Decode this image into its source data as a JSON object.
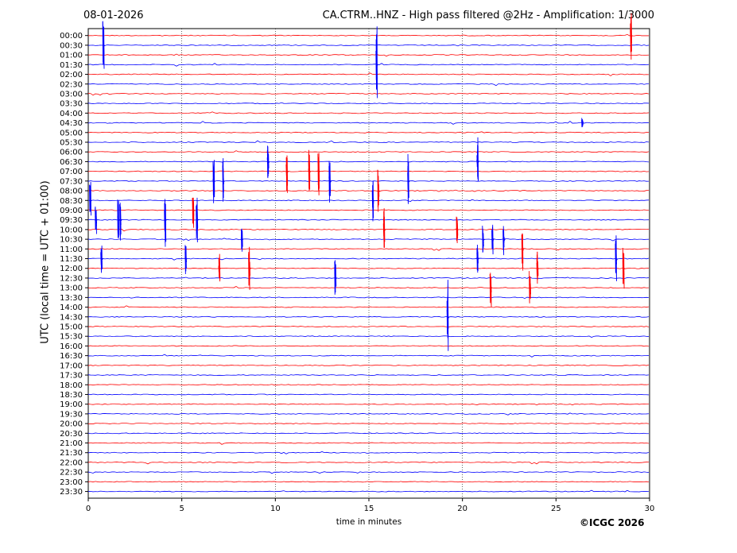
{
  "header": {
    "date": "08-01-2026",
    "title": "CA.CTRM..HNZ - High pass filtered @2Hz - Amplification: 1/3000"
  },
  "footer": {
    "credit": "©ICGC 2026"
  },
  "colors": {
    "trace_a": "#ff0000",
    "trace_b": "#0000ff",
    "grid": "#000000",
    "axis": "#000000"
  },
  "chart_data": {
    "type": "line",
    "title": "CA.CTRM..HNZ - High pass filtered @2Hz - Amplification: 1/3000",
    "xlabel": "time in minutes",
    "ylabel": "UTC (local time = UTC + 01:00)",
    "xlim": [
      0,
      30
    ],
    "x_ticks": [
      0,
      5,
      10,
      15,
      20,
      25,
      30
    ],
    "grid": "vertical dotted at each x tick",
    "legend": "none",
    "series_colors": [
      "#ff0000",
      "#0000ff"
    ],
    "rows": [
      "00:00",
      "00:30",
      "01:00",
      "01:30",
      "02:00",
      "02:30",
      "03:00",
      "03:30",
      "04:00",
      "04:30",
      "05:00",
      "05:30",
      "06:00",
      "06:30",
      "07:00",
      "07:30",
      "08:00",
      "08:30",
      "09:00",
      "09:30",
      "10:00",
      "10:30",
      "11:00",
      "11:30",
      "12:00",
      "12:30",
      "13:00",
      "13:30",
      "14:00",
      "14:30",
      "15:00",
      "15:30",
      "16:00",
      "16:30",
      "17:00",
      "17:30",
      "18:00",
      "18:30",
      "19:00",
      "19:30",
      "20:00",
      "20:30",
      "21:00",
      "21:30",
      "22:00",
      "22:30",
      "23:00",
      "23:30"
    ],
    "events": [
      {
        "row": 1,
        "minute": 0.8,
        "amplitude": 3.2
      },
      {
        "row": 0,
        "minute": 29.0,
        "amplitude": 2.5
      },
      {
        "row": 3,
        "minute": 15.4,
        "amplitude": 4.0
      },
      {
        "row": 9,
        "minute": 26.4,
        "amplitude": 0.5
      },
      {
        "row": 13,
        "minute": 20.8,
        "amplitude": 3.0
      },
      {
        "row": 14,
        "minute": 10.6,
        "amplitude": 2.5
      },
      {
        "row": 15,
        "minute": 17.1,
        "amplitude": 3.3
      },
      {
        "row": 13,
        "minute": 9.6,
        "amplitude": 2.0
      },
      {
        "row": 14,
        "minute": 11.8,
        "amplitude": 2.5
      },
      {
        "row": 14,
        "minute": 12.3,
        "amplitude": 2.5
      },
      {
        "row": 15,
        "minute": 12.9,
        "amplitude": 2.3
      },
      {
        "row": 15,
        "minute": 6.7,
        "amplitude": 2.5
      },
      {
        "row": 15,
        "minute": 7.2,
        "amplitude": 2.5
      },
      {
        "row": 17,
        "minute": 15.2,
        "amplitude": 2.7
      },
      {
        "row": 16,
        "minute": 15.5,
        "amplitude": 2.5
      },
      {
        "row": 17,
        "minute": 0.1,
        "amplitude": 2.0
      },
      {
        "row": 19,
        "minute": 1.7,
        "amplitude": 2.5
      },
      {
        "row": 19,
        "minute": 1.6,
        "amplitude": 2.3
      },
      {
        "row": 19,
        "minute": 4.1,
        "amplitude": 3.0
      },
      {
        "row": 19,
        "minute": 5.8,
        "amplitude": 2.5
      },
      {
        "row": 18,
        "minute": 5.6,
        "amplitude": 2.0
      },
      {
        "row": 19,
        "minute": 0.4,
        "amplitude": 1.6
      },
      {
        "row": 20,
        "minute": 15.8,
        "amplitude": 2.5
      },
      {
        "row": 20,
        "minute": 19.7,
        "amplitude": 1.8
      },
      {
        "row": 21,
        "minute": 21.6,
        "amplitude": 1.8
      },
      {
        "row": 21,
        "minute": 22.2,
        "amplitude": 1.7
      },
      {
        "row": 21,
        "minute": 21.1,
        "amplitude": 1.5
      },
      {
        "row": 21,
        "minute": 8.2,
        "amplitude": 1.5
      },
      {
        "row": 22,
        "minute": 23.2,
        "amplitude": 2.3
      },
      {
        "row": 23,
        "minute": 20.8,
        "amplitude": 1.6
      },
      {
        "row": 24,
        "minute": 24.0,
        "amplitude": 2.0
      },
      {
        "row": 23,
        "minute": 28.2,
        "amplitude": 2.5
      },
      {
        "row": 24,
        "minute": 28.6,
        "amplitude": 2.3
      },
      {
        "row": 23,
        "minute": 5.2,
        "amplitude": 1.8
      },
      {
        "row": 24,
        "minute": 7.0,
        "amplitude": 1.6
      },
      {
        "row": 24,
        "minute": 8.6,
        "amplitude": 2.5
      },
      {
        "row": 25,
        "minute": 13.2,
        "amplitude": 2.0
      },
      {
        "row": 26,
        "minute": 23.6,
        "amplitude": 2.0
      },
      {
        "row": 26,
        "minute": 21.5,
        "amplitude": 2.3
      },
      {
        "row": 29,
        "minute": 19.2,
        "amplitude": 4.2
      },
      {
        "row": 23,
        "minute": 0.7,
        "amplitude": 1.6
      }
    ]
  }
}
